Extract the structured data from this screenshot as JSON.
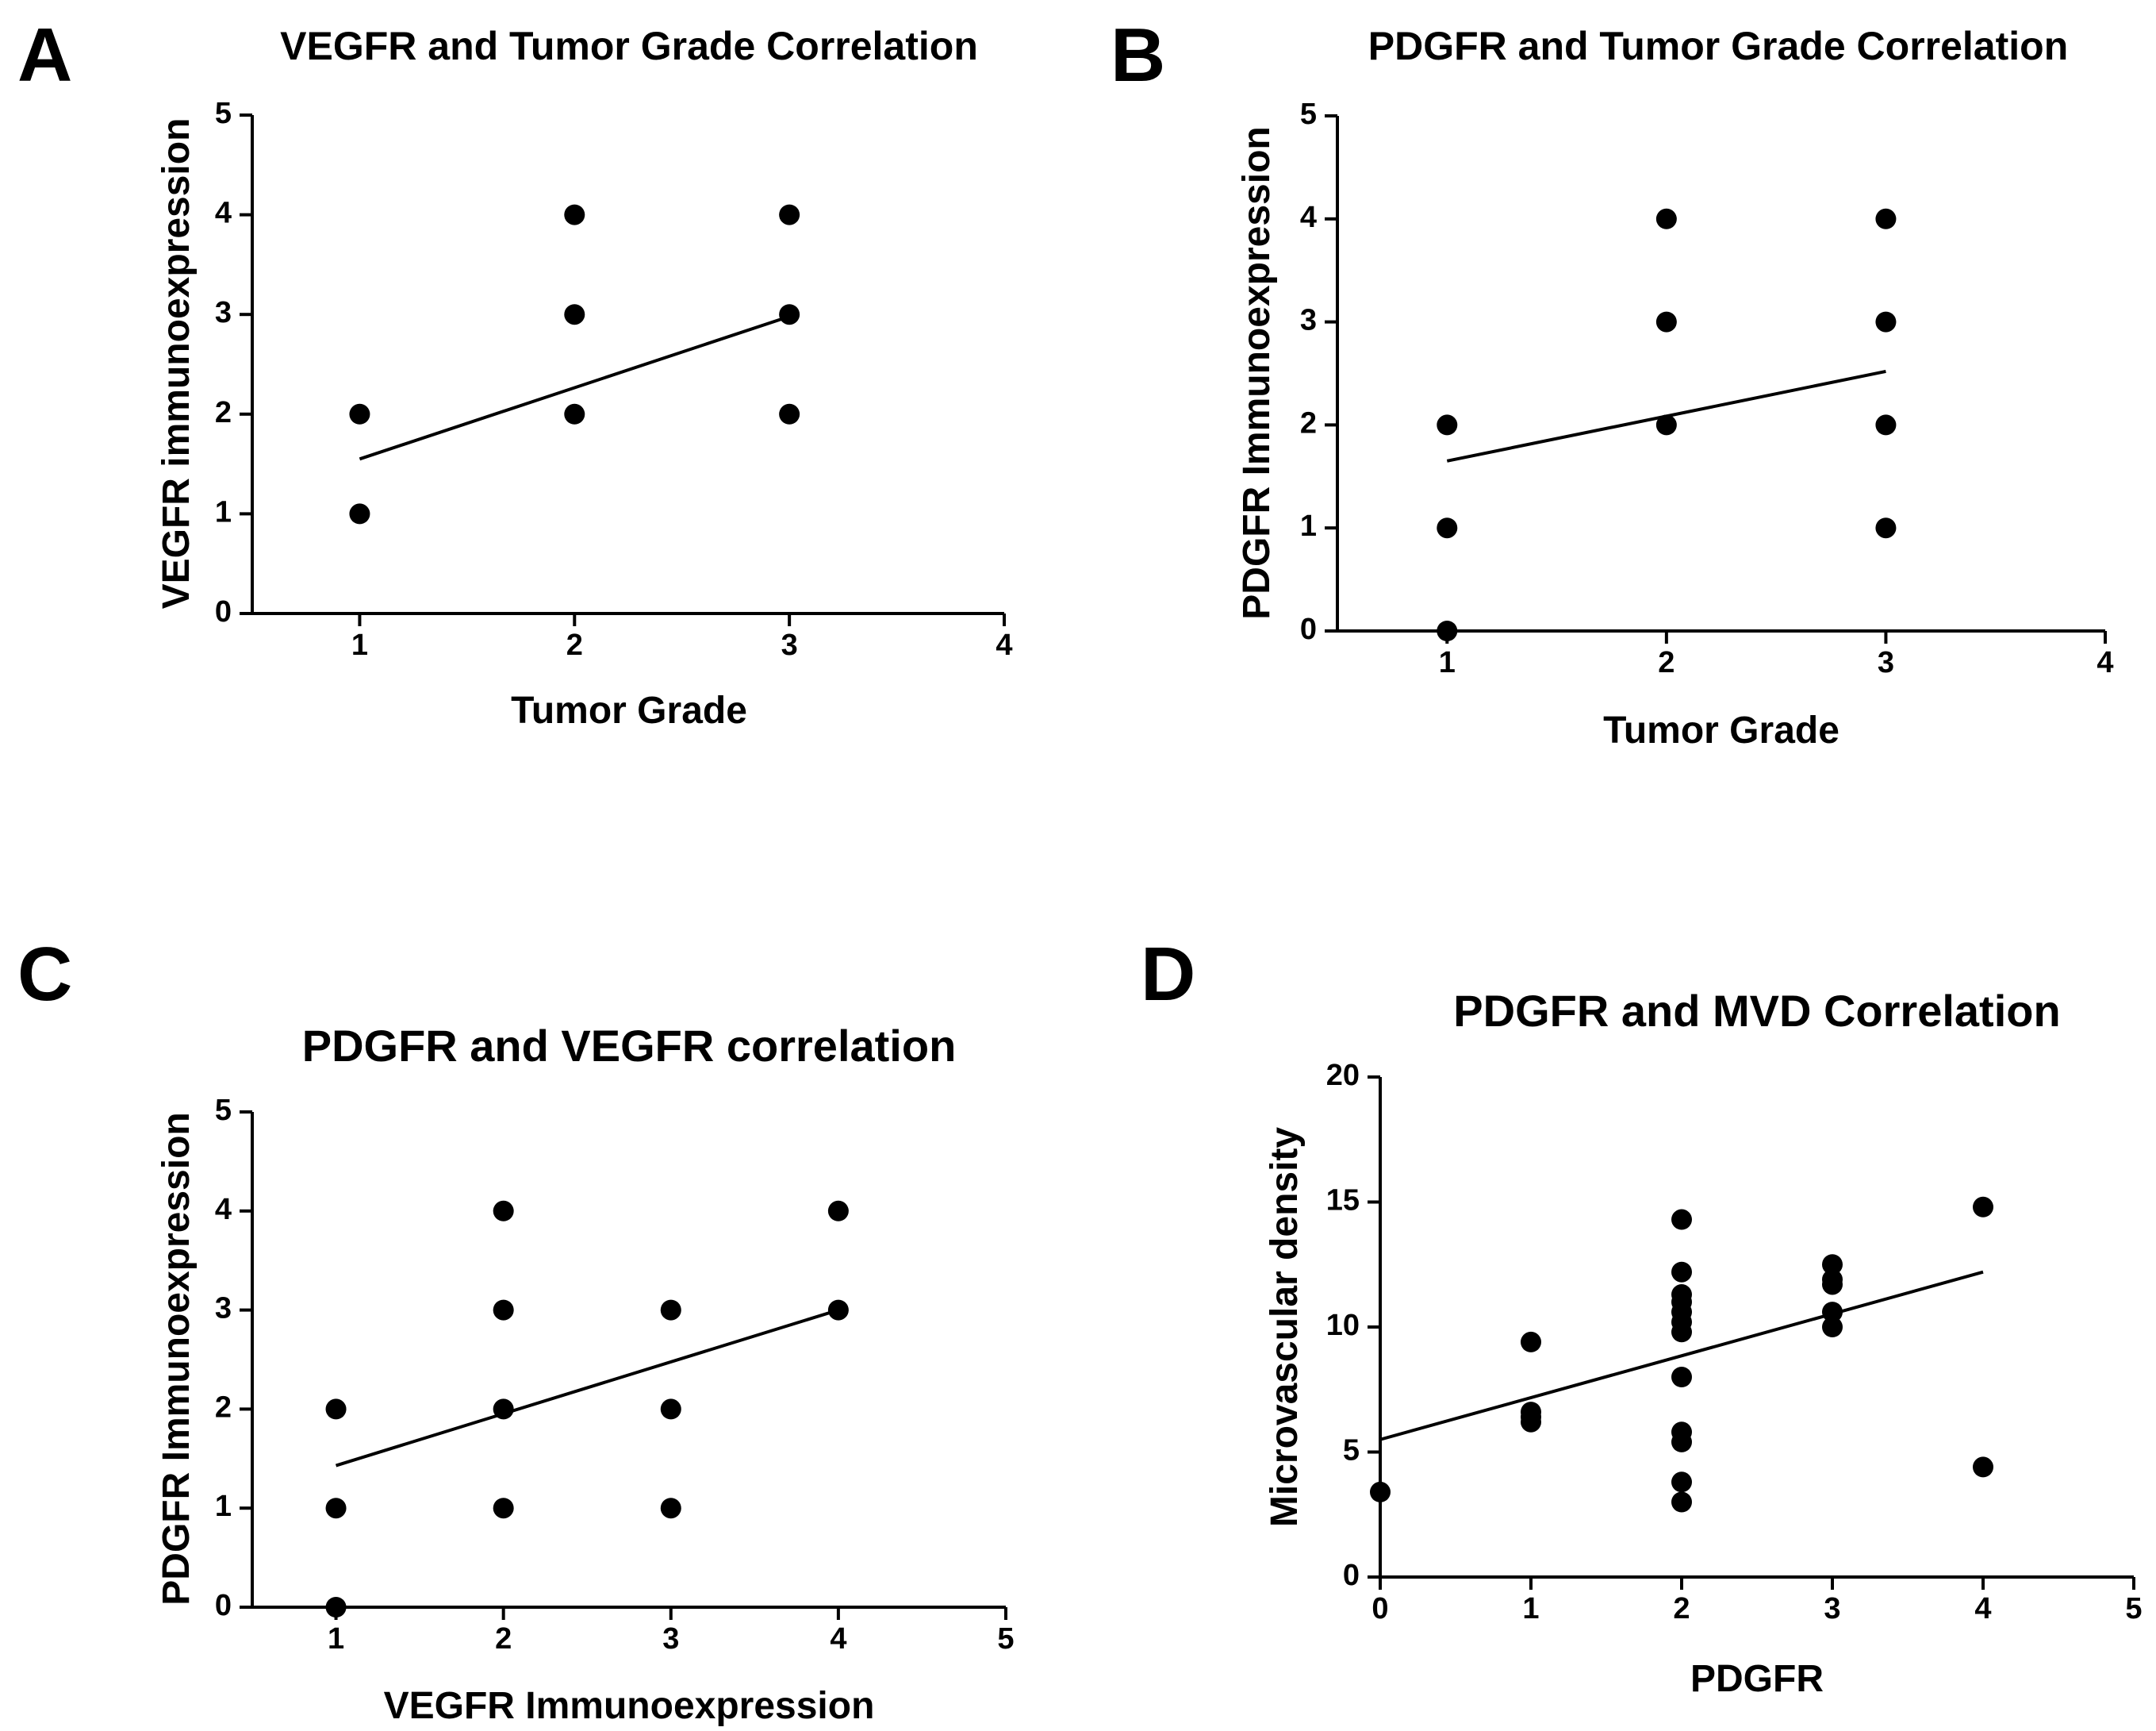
{
  "figure": {
    "panel_letters": [
      "A",
      "B",
      "C",
      "D"
    ]
  },
  "chart_data": [
    {
      "panel": "A",
      "type": "scatter",
      "title": "VEGFR and Tumor Grade Correlation",
      "xlabel": "Tumor Grade",
      "ylabel": "VEGFR immunoexpression",
      "xlim": [
        0.5,
        4
      ],
      "ylim": [
        0,
        5
      ],
      "xticks": [
        1,
        2,
        3,
        4
      ],
      "yticks": [
        0,
        1,
        2,
        3,
        4,
        5
      ],
      "points": [
        [
          1,
          2
        ],
        [
          1,
          1
        ],
        [
          2,
          4
        ],
        [
          2,
          3
        ],
        [
          2,
          2
        ],
        [
          3,
          4
        ],
        [
          3,
          3
        ],
        [
          3,
          2
        ]
      ],
      "fit_line": [
        [
          1,
          1.55
        ],
        [
          3,
          2.98
        ]
      ],
      "grid": false
    },
    {
      "panel": "B",
      "type": "scatter",
      "title": "PDGFR and Tumor Grade Correlation",
      "xlabel": "Tumor Grade",
      "ylabel": "PDGFR Immunoexpression",
      "xlim": [
        0.5,
        4
      ],
      "ylim": [
        0,
        5
      ],
      "xticks": [
        1,
        2,
        3,
        4
      ],
      "yticks": [
        0,
        1,
        2,
        3,
        4,
        5
      ],
      "points": [
        [
          1,
          2
        ],
        [
          1,
          1
        ],
        [
          1,
          0
        ],
        [
          2,
          4
        ],
        [
          2,
          3
        ],
        [
          2,
          2
        ],
        [
          3,
          4
        ],
        [
          3,
          3
        ],
        [
          3,
          2
        ],
        [
          3,
          1
        ]
      ],
      "fit_line": [
        [
          1,
          1.65
        ],
        [
          3,
          2.52
        ]
      ],
      "grid": false
    },
    {
      "panel": "C",
      "type": "scatter",
      "title": "PDGFR and VEGFR correlation",
      "xlabel": "VEGFR Immunoexpression",
      "ylabel": "PDGFR Immunoexpression",
      "xlim": [
        0.5,
        5
      ],
      "ylim": [
        0,
        5
      ],
      "xticks": [
        1,
        2,
        3,
        4,
        5
      ],
      "yticks": [
        0,
        1,
        2,
        3,
        4,
        5
      ],
      "points": [
        [
          1,
          2
        ],
        [
          1,
          1
        ],
        [
          1,
          0
        ],
        [
          2,
          4
        ],
        [
          2,
          3
        ],
        [
          2,
          2
        ],
        [
          2,
          1
        ],
        [
          3,
          3
        ],
        [
          3,
          2
        ],
        [
          3,
          1
        ],
        [
          4,
          4
        ],
        [
          4,
          3
        ]
      ],
      "fit_line": [
        [
          1,
          1.43
        ],
        [
          4,
          3.0
        ]
      ],
      "grid": false
    },
    {
      "panel": "D",
      "type": "scatter",
      "title": "PDGFR and MVD Correlation",
      "xlabel": "PDGFR",
      "ylabel": "Microvascular density",
      "xlim": [
        0,
        5
      ],
      "ylim": [
        0,
        20
      ],
      "xticks": [
        0,
        1,
        2,
        3,
        4,
        5
      ],
      "yticks": [
        0,
        5,
        10,
        15,
        20
      ],
      "points": [
        [
          0,
          3.4
        ],
        [
          1,
          9.4
        ],
        [
          1,
          6.6
        ],
        [
          1,
          6.4
        ],
        [
          1,
          6.2
        ],
        [
          2,
          14.3
        ],
        [
          2,
          12.2
        ],
        [
          2,
          11.3
        ],
        [
          2,
          11.0
        ],
        [
          2,
          10.6
        ],
        [
          2,
          10.2
        ],
        [
          2,
          9.8
        ],
        [
          2,
          8.0
        ],
        [
          2,
          5.8
        ],
        [
          2,
          5.4
        ],
        [
          2,
          3.8
        ],
        [
          2,
          3.0
        ],
        [
          3,
          12.5
        ],
        [
          3,
          11.9
        ],
        [
          3,
          11.7
        ],
        [
          3,
          10.6
        ],
        [
          3,
          10.0
        ],
        [
          4,
          14.8
        ],
        [
          4,
          4.4
        ]
      ],
      "fit_line": [
        [
          0,
          5.5
        ],
        [
          4,
          12.2
        ]
      ],
      "grid": false
    }
  ]
}
